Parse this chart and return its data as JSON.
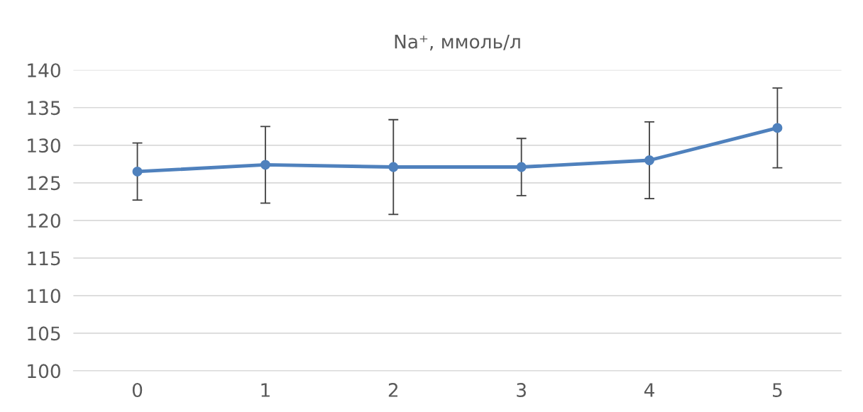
{
  "chart_data": {
    "type": "line",
    "title": "Na⁺, ммоль/л",
    "categories": [
      "0",
      "1",
      "2",
      "3",
      "4",
      "5"
    ],
    "series": [
      {
        "color": "#4f81bd",
        "values": [
          126.5,
          127.4,
          127.1,
          127.1,
          128.0,
          132.3
        ],
        "errors": [
          3.8,
          5.1,
          6.3,
          3.8,
          5.1,
          5.3
        ]
      }
    ],
    "ylim": [
      100,
      140
    ],
    "yticks": [
      100,
      105,
      110,
      115,
      120,
      125,
      130,
      135,
      140
    ],
    "grid": "y",
    "marker": "circle",
    "line_style": "solid",
    "legend": false
  }
}
